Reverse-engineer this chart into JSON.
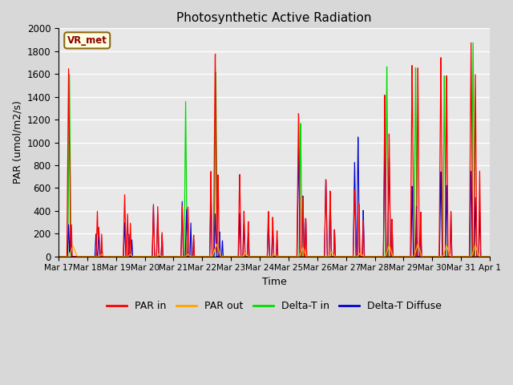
{
  "title": "Photosynthetic Active Radiation",
  "ylabel": "PAR (umol/m2/s)",
  "xlabel": "Time",
  "label_text": "VR_met",
  "ylim": [
    0,
    2000
  ],
  "legend_labels": [
    "PAR in",
    "PAR out",
    "Delta-T in",
    "Delta-T Diffuse"
  ],
  "legend_colors": [
    "#ff0000",
    "#ffa500",
    "#00dd00",
    "#0000cc"
  ],
  "bg_color": "#e8e8e8",
  "grid_color": "#ffffff",
  "tick_labels": [
    "Mar 17",
    "Mar 18",
    "Mar 19",
    "Mar 20",
    "Mar 21",
    "Mar 22",
    "Mar 23",
    "Mar 24",
    "Mar 25",
    "Mar 26",
    "Mar 27",
    "Mar 28",
    "Mar 29",
    "Mar 30",
    "Mar 31",
    "Apr 1"
  ],
  "tick_positions": [
    0,
    1,
    2,
    3,
    4,
    5,
    6,
    7,
    8,
    9,
    10,
    11,
    12,
    13,
    14,
    15
  ],
  "figsize": [
    6.4,
    4.8
  ],
  "dpi": 100
}
